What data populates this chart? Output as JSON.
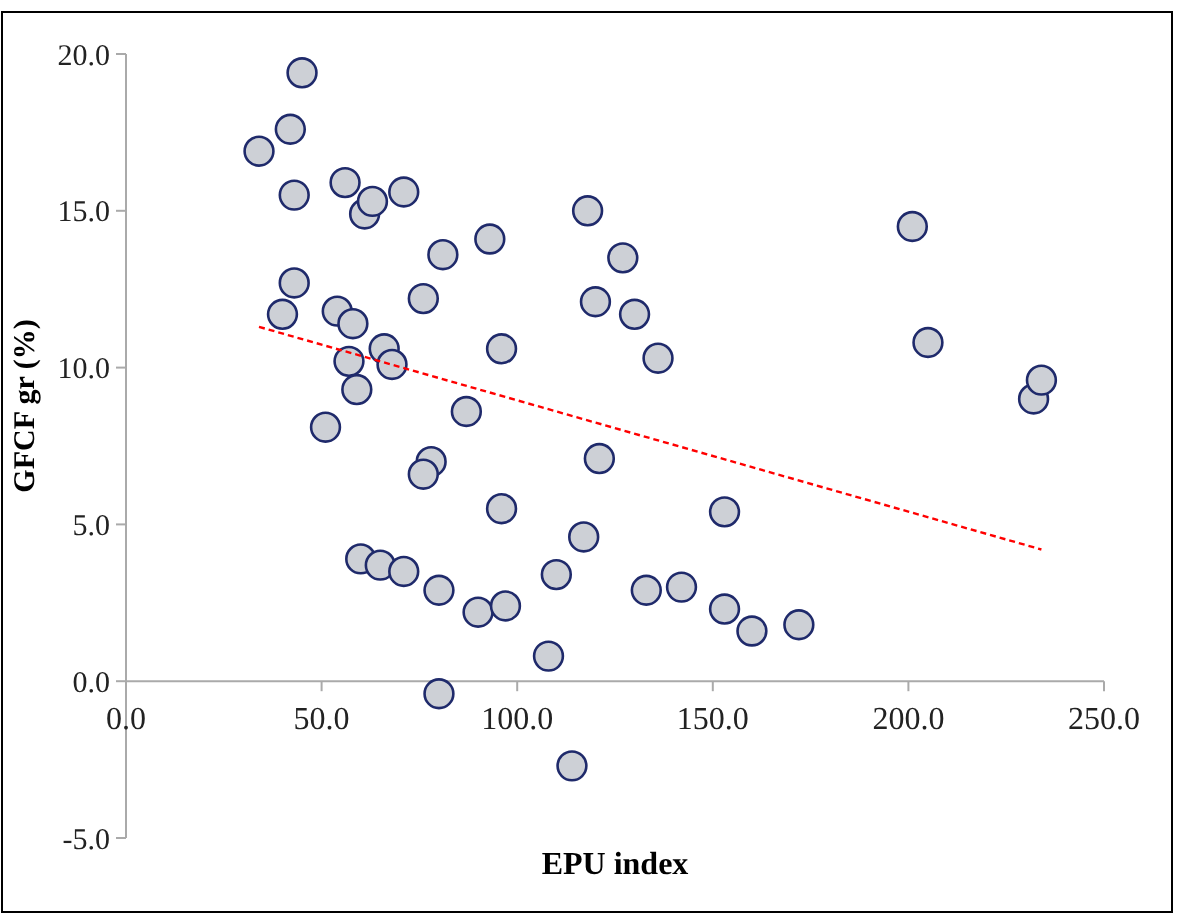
{
  "chart_data": {
    "type": "scatter",
    "xlabel": "EPU index",
    "ylabel": "GFCF gr (%)",
    "xlim": [
      0,
      250
    ],
    "ylim": [
      -5,
      20
    ],
    "xticks": [
      {
        "value": 0,
        "label": "0.0"
      },
      {
        "value": 50,
        "label": "50.0"
      },
      {
        "value": 100,
        "label": "100.0"
      },
      {
        "value": 150,
        "label": "150.0"
      },
      {
        "value": 200,
        "label": "200.0"
      },
      {
        "value": 250,
        "label": "250.0"
      }
    ],
    "yticks": [
      {
        "value": -5,
        "label": "-5.0"
      },
      {
        "value": 0,
        "label": "0.0"
      },
      {
        "value": 5,
        "label": "5.0"
      },
      {
        "value": 10,
        "label": "10.0"
      },
      {
        "value": 15,
        "label": "15.0"
      },
      {
        "value": 20,
        "label": "20.0"
      }
    ],
    "grid": false,
    "marker": "circle",
    "series": [
      {
        "color": "#cdd0d6",
        "x": [
          34,
          42,
          45,
          43,
          56,
          61,
          63,
          71,
          43,
          40,
          54,
          58,
          57,
          66,
          68,
          59,
          51,
          76,
          81,
          93,
          96,
          87,
          78,
          76,
          96,
          60,
          65,
          71,
          80,
          90,
          97,
          108,
          80,
          110,
          117,
          118,
          120,
          121,
          127,
          130,
          136,
          114,
          133,
          142,
          153,
          153,
          160,
          172,
          201,
          205,
          232,
          234
        ],
        "values": [
          16.9,
          17.6,
          19.4,
          15.5,
          15.9,
          14.9,
          15.3,
          15.6,
          12.7,
          11.7,
          11.8,
          11.4,
          10.2,
          10.6,
          10.1,
          9.3,
          8.1,
          12.2,
          13.6,
          14.1,
          10.6,
          8.6,
          7.0,
          6.6,
          5.5,
          3.9,
          3.7,
          3.5,
          2.9,
          2.2,
          2.4,
          0.8,
          -0.4,
          3.4,
          4.6,
          15.0,
          12.1,
          7.1,
          13.5,
          11.7,
          10.3,
          -2.7,
          2.9,
          3.0,
          5.4,
          2.3,
          1.6,
          1.8,
          14.5,
          10.8,
          9.0,
          9.6
        ]
      },
      {
        "type": "line",
        "color": "#ff0000",
        "line_style": "dashed",
        "marker": "none",
        "x": [
          34,
          234
        ],
        "values": [
          11.3,
          4.2
        ]
      }
    ]
  }
}
